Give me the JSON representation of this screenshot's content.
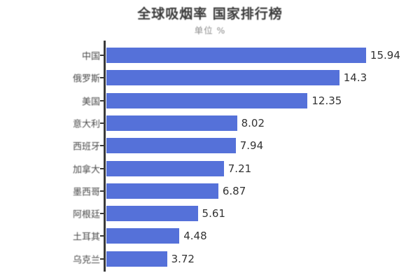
{
  "chart_data": {
    "type": "bar",
    "orientation": "horizontal",
    "title": "全球吸烟率 国家排行榜",
    "subtitle": "单位 %",
    "categories": [
      "中国",
      "俄罗斯",
      "美国",
      "意大利",
      "西班牙",
      "加拿大",
      "墨西哥",
      "阿根廷",
      "土耳其",
      "乌克兰"
    ],
    "values": [
      15.94,
      14.3,
      12.35,
      8.02,
      7.94,
      7.21,
      6.87,
      5.61,
      4.48,
      3.72
    ],
    "value_labels": [
      "15.94",
      "14.3",
      "12.35",
      "8.02",
      "7.94",
      "7.21",
      "6.87",
      "5.61",
      "4.48",
      "3.72"
    ],
    "xlim": [
      0,
      16.8
    ],
    "grid": false,
    "legend_position": "none",
    "colors": {
      "bar": "#5571d9",
      "axis": "#3a3a3a",
      "title_text": "#3d3d3d",
      "subtitle_text": "#8c8c8c",
      "label_text": "#4a4a4a",
      "value_text": "#333333",
      "background": "#ffffff"
    }
  }
}
